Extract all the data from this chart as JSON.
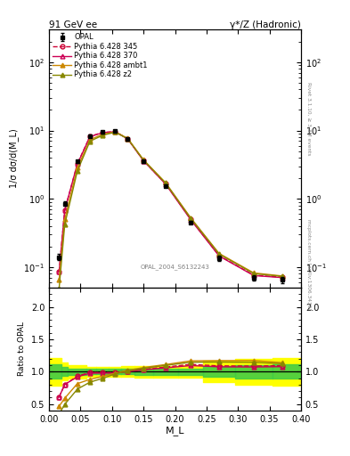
{
  "title_left": "91 GeV ee",
  "title_right": "γ*/Z (Hadronic)",
  "ylabel_main": "1/σ dσ/d(M_L)",
  "ylabel_ratio": "Ratio to OPAL",
  "xlabel": "M_L",
  "rivet_label": "Rivet 3.1.10, ≥ 3.3M events",
  "mcplots_label": "mcplots.cern.ch [arXiv:1306.3436]",
  "ref_label": "OPAL_2004_S6132243",
  "x_data": [
    0.016,
    0.025,
    0.045,
    0.065,
    0.085,
    0.105,
    0.125,
    0.15,
    0.185,
    0.225,
    0.27,
    0.325,
    0.37
  ],
  "opal_y": [
    0.14,
    0.85,
    3.5,
    8.3,
    9.5,
    9.8,
    7.5,
    3.5,
    1.55,
    0.45,
    0.135,
    0.07,
    0.065
  ],
  "opal_yerr": [
    0.015,
    0.06,
    0.18,
    0.32,
    0.37,
    0.38,
    0.3,
    0.16,
    0.07,
    0.022,
    0.011,
    0.007,
    0.007
  ],
  "py345_y": [
    0.085,
    0.68,
    3.25,
    8.2,
    9.35,
    9.65,
    7.55,
    3.62,
    1.66,
    0.5,
    0.147,
    0.076,
    0.071
  ],
  "py370_y": [
    0.085,
    0.68,
    3.22,
    8.1,
    9.28,
    9.58,
    7.5,
    3.6,
    1.64,
    0.492,
    0.145,
    0.075,
    0.07
  ],
  "py_ambt1_y": [
    0.065,
    0.5,
    2.85,
    7.3,
    8.8,
    9.55,
    7.65,
    3.72,
    1.72,
    0.525,
    0.158,
    0.082,
    0.074
  ],
  "py_z2_y": [
    0.048,
    0.42,
    2.55,
    6.95,
    8.5,
    9.45,
    7.58,
    3.68,
    1.7,
    0.515,
    0.155,
    0.08,
    0.073
  ],
  "color_opal": "#000000",
  "color_py345": "#cc0033",
  "color_py370": "#cc0055",
  "color_ambt1": "#cc8800",
  "color_z2": "#888800",
  "legend_entries": [
    "OPAL",
    "Pythia 6.428 345",
    "Pythia 6.428 370",
    "Pythia 6.428 ambt1",
    "Pythia 6.428 z2"
  ],
  "xlim": [
    0.0,
    0.4
  ],
  "ylim_main": [
    0.05,
    300
  ],
  "ylim_ratio": [
    0.4,
    2.3
  ],
  "bin_edges": [
    0.0,
    0.02,
    0.03,
    0.06,
    0.075,
    0.095,
    0.115,
    0.135,
    0.165,
    0.205,
    0.245,
    0.295,
    0.355,
    0.4
  ]
}
